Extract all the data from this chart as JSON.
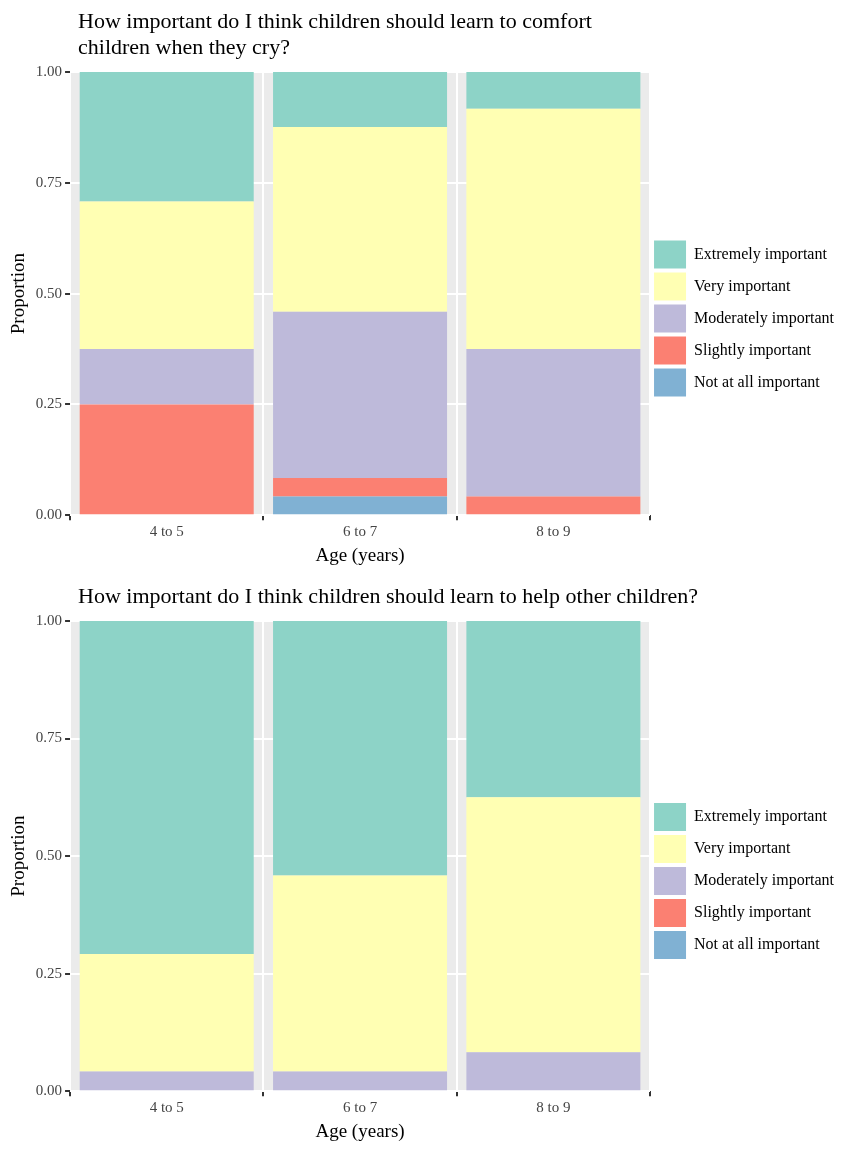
{
  "chart_data": [
    {
      "type": "bar",
      "stacked": true,
      "title": "How important do I think children should learn to comfort children when they cry?",
      "xlabel": "Age (years)",
      "ylabel": "Proportion",
      "categories": [
        "4 to 5",
        "6 to 7",
        "8 to 9"
      ],
      "ylim": [
        0,
        1
      ],
      "yticks": [
        {
          "value": 0,
          "label": "0.00"
        },
        {
          "value": 0.25,
          "label": "0.25"
        },
        {
          "value": 0.5,
          "label": "0.50"
        },
        {
          "value": 0.75,
          "label": "0.75"
        },
        {
          "value": 1,
          "label": "1.00"
        }
      ],
      "grid": true,
      "legend": "right",
      "series": [
        {
          "name": "Not at all important",
          "color": "#80b1d3",
          "values": [
            0,
            0.042,
            0
          ]
        },
        {
          "name": "Slightly important",
          "color": "#fb8072",
          "values": [
            0.25,
            0.042,
            0.042
          ]
        },
        {
          "name": "Moderately important",
          "color": "#bebada",
          "values": [
            0.125,
            0.375,
            0.333
          ]
        },
        {
          "name": "Very important",
          "color": "#ffffb3",
          "values": [
            0.333,
            0.417,
            0.542
          ]
        },
        {
          "name": "Extremely important",
          "color": "#8dd3c7",
          "values": [
            0.292,
            0.125,
            0.083
          ]
        }
      ]
    },
    {
      "type": "bar",
      "stacked": true,
      "title": "How important do I think children should learn to help other children?",
      "xlabel": "Age (years)",
      "ylabel": "Proportion",
      "categories": [
        "4 to 5",
        "6 to 7",
        "8 to 9"
      ],
      "ylim": [
        0,
        1
      ],
      "yticks": [
        {
          "value": 0,
          "label": "0.00"
        },
        {
          "value": 0.25,
          "label": "0.25"
        },
        {
          "value": 0.5,
          "label": "0.50"
        },
        {
          "value": 0.75,
          "label": "0.75"
        },
        {
          "value": 1,
          "label": "1.00"
        }
      ],
      "grid": true,
      "legend": "right",
      "series": [
        {
          "name": "Not at all important",
          "color": "#80b1d3",
          "values": [
            0,
            0,
            0
          ]
        },
        {
          "name": "Slightly important",
          "color": "#fb8072",
          "values": [
            0,
            0,
            0
          ]
        },
        {
          "name": "Moderately important",
          "color": "#bebada",
          "values": [
            0.042,
            0.042,
            0.083
          ]
        },
        {
          "name": "Very important",
          "color": "#ffffb3",
          "values": [
            0.25,
            0.417,
            0.542
          ]
        },
        {
          "name": "Extremely important",
          "color": "#8dd3c7",
          "values": [
            0.708,
            0.542,
            0.375
          ]
        }
      ]
    }
  ]
}
